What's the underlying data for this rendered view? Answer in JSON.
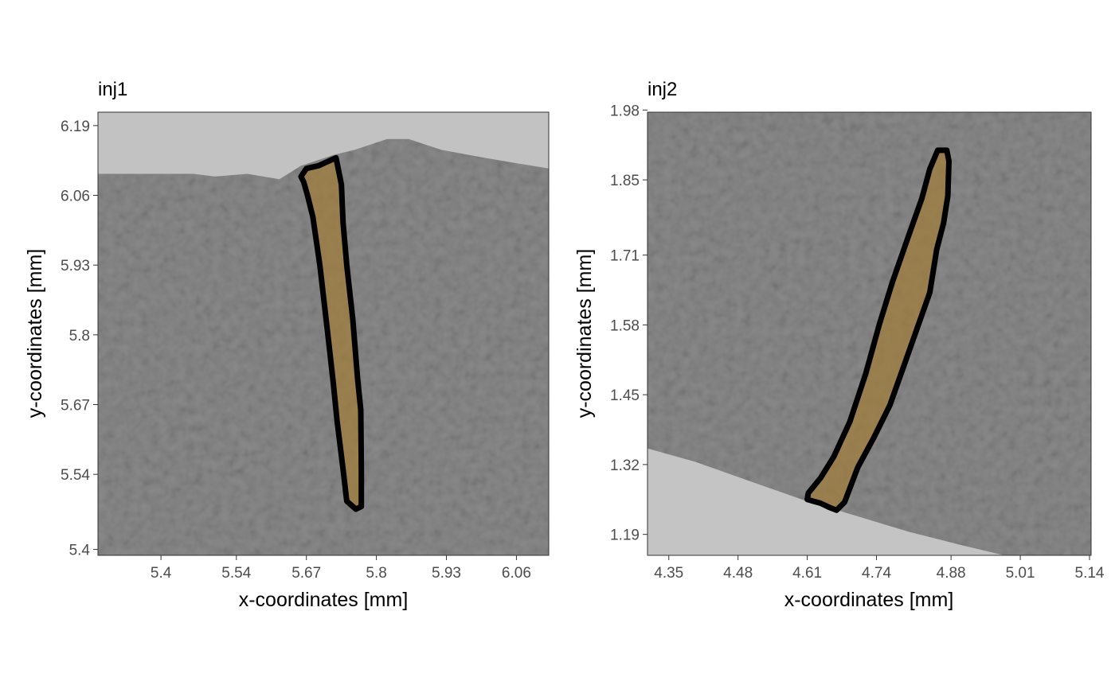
{
  "chart_data": [
    {
      "type": "image-overlay",
      "title": "inj1",
      "xlabel": "x-coordinates [mm]",
      "ylabel": "y-coordinates [mm]",
      "x_ticks": [
        5.4,
        5.54,
        5.67,
        5.8,
        5.93,
        6.06
      ],
      "y_ticks": [
        5.4,
        5.54,
        5.67,
        5.8,
        5.93,
        6.06,
        6.19
      ],
      "xlim": [
        5.283,
        6.12
      ],
      "ylim": [
        5.389,
        6.215
      ],
      "background": {
        "description_free": true,
        "upper_boundary": [
          [
            5.283,
            6.1
          ],
          [
            5.38,
            6.1
          ],
          [
            5.46,
            6.1
          ],
          [
            5.5,
            6.095
          ],
          [
            5.56,
            6.1
          ],
          [
            5.62,
            6.09
          ],
          [
            5.66,
            6.115
          ],
          [
            5.72,
            6.135
          ],
          [
            5.76,
            6.145
          ],
          [
            5.82,
            6.165
          ],
          [
            5.86,
            6.165
          ],
          [
            5.92,
            6.145
          ],
          [
            6.0,
            6.13
          ],
          [
            6.06,
            6.12
          ],
          [
            6.12,
            6.11
          ]
        ]
      },
      "series": [
        {
          "outline": [
            [
              5.66,
              6.095
            ],
            [
              5.67,
              6.11
            ],
            [
              5.692,
              6.115
            ],
            [
              5.725,
              6.13
            ],
            [
              5.735,
              6.08
            ],
            [
              5.738,
              6.01
            ],
            [
              5.745,
              5.93
            ],
            [
              5.756,
              5.83
            ],
            [
              5.765,
              5.72
            ],
            [
              5.771,
              5.66
            ],
            [
              5.772,
              5.55
            ],
            [
              5.772,
              5.48
            ],
            [
              5.762,
              5.475
            ],
            [
              5.745,
              5.49
            ],
            [
              5.738,
              5.55
            ],
            [
              5.727,
              5.64
            ],
            [
              5.72,
              5.71
            ],
            [
              5.71,
              5.8
            ],
            [
              5.695,
              5.93
            ],
            [
              5.682,
              6.02
            ],
            [
              5.672,
              6.06
            ],
            [
              5.665,
              6.085
            ]
          ],
          "fill": "#a07c3c",
          "stroke": "#000000"
        }
      ]
    },
    {
      "type": "image-overlay",
      "title": "inj2",
      "xlabel": "x-coordinates [mm]",
      "ylabel": "y-coordinates [mm]",
      "x_ticks": [
        4.35,
        4.48,
        4.61,
        4.74,
        4.88,
        5.01,
        5.14
      ],
      "y_ticks": [
        1.19,
        1.32,
        1.45,
        1.58,
        1.71,
        1.85,
        1.98
      ],
      "xlim": [
        4.31,
        5.143
      ],
      "ylim": [
        1.151,
        1.976
      ],
      "background": {
        "lower_boundary": [
          [
            4.31,
            1.35
          ],
          [
            4.4,
            1.325
          ],
          [
            4.5,
            1.29
          ],
          [
            4.6,
            1.255
          ],
          [
            4.7,
            1.225
          ],
          [
            4.8,
            1.195
          ],
          [
            4.9,
            1.17
          ],
          [
            4.98,
            1.151
          ]
        ]
      },
      "series": [
        {
          "outline": [
            [
              4.612,
              1.267
            ],
            [
              4.635,
              1.295
            ],
            [
              4.66,
              1.335
            ],
            [
              4.69,
              1.4
            ],
            [
              4.72,
              1.49
            ],
            [
              4.745,
              1.58
            ],
            [
              4.77,
              1.66
            ],
            [
              4.8,
              1.745
            ],
            [
              4.825,
              1.815
            ],
            [
              4.84,
              1.87
            ],
            [
              4.855,
              1.905
            ],
            [
              4.872,
              1.905
            ],
            [
              4.876,
              1.885
            ],
            [
              4.874,
              1.82
            ],
            [
              4.866,
              1.77
            ],
            [
              4.853,
              1.72
            ],
            [
              4.84,
              1.64
            ],
            [
              4.815,
              1.57
            ],
            [
              4.79,
              1.5
            ],
            [
              4.765,
              1.43
            ],
            [
              4.735,
              1.37
            ],
            [
              4.705,
              1.315
            ],
            [
              4.68,
              1.25
            ],
            [
              4.665,
              1.235
            ],
            [
              4.652,
              1.24
            ],
            [
              4.635,
              1.248
            ],
            [
              4.61,
              1.255
            ]
          ],
          "fill": "#a07c3c",
          "stroke": "#000000"
        }
      ]
    }
  ]
}
